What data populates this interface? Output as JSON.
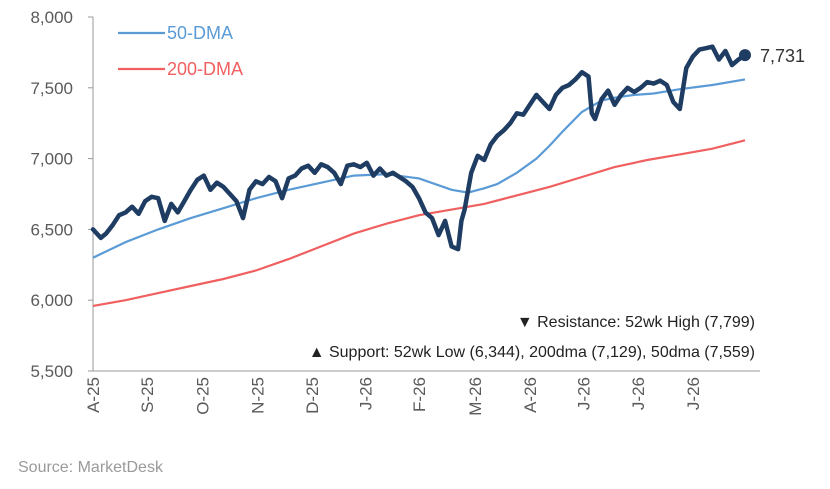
{
  "source": "Source: MarketDesk",
  "chart_data": {
    "type": "line",
    "ylim": [
      5500,
      8000
    ],
    "yticks": [
      "8,000",
      "7,500",
      "7,000",
      "6,500",
      "6,000",
      "5,500"
    ],
    "ytick_values": [
      8000,
      7500,
      7000,
      6500,
      6000,
      5500
    ],
    "x_range": [
      0,
      1
    ],
    "xticks": [
      {
        "label": "A-25",
        "pos": 0.0
      },
      {
        "label": "S-25",
        "pos": 0.083
      },
      {
        "label": "O-25",
        "pos": 0.168
      },
      {
        "label": "N-25",
        "pos": 0.252
      },
      {
        "label": "D-25",
        "pos": 0.336
      },
      {
        "label": "J-26",
        "pos": 0.418
      },
      {
        "label": "F-26",
        "pos": 0.5
      },
      {
        "label": "M-26",
        "pos": 0.586
      },
      {
        "label": "A-26",
        "pos": 0.67
      },
      {
        "label": "J-26",
        "pos": 0.752
      },
      {
        "label": "J-26",
        "pos": 0.836
      },
      {
        "label": "J-26",
        "pos": 0.92
      }
    ],
    "legend": [
      {
        "name": "50-DMA",
        "color": "#5b9bd5"
      },
      {
        "name": "200-DMA",
        "color": "#f06060"
      }
    ],
    "last_value_label": "7,731",
    "annotations": {
      "resistance": "▼ Resistance:  52wk High (7,799)",
      "support": "▲ Support:  52wk Low (6,344), 200dma (7,129), 50dma (7,559)"
    },
    "series": [
      {
        "key": "price",
        "color": "#1f3d63",
        "x": [
          0.0,
          0.012,
          0.02,
          0.03,
          0.04,
          0.05,
          0.06,
          0.07,
          0.08,
          0.09,
          0.1,
          0.11,
          0.12,
          0.13,
          0.14,
          0.15,
          0.16,
          0.17,
          0.18,
          0.19,
          0.2,
          0.21,
          0.22,
          0.23,
          0.24,
          0.25,
          0.26,
          0.27,
          0.28,
          0.29,
          0.3,
          0.31,
          0.32,
          0.33,
          0.34,
          0.35,
          0.36,
          0.37,
          0.38,
          0.39,
          0.4,
          0.41,
          0.42,
          0.43,
          0.44,
          0.45,
          0.46,
          0.47,
          0.48,
          0.49,
          0.5,
          0.51,
          0.52,
          0.53,
          0.54,
          0.55,
          0.56,
          0.565,
          0.57,
          0.58,
          0.59,
          0.6,
          0.61,
          0.62,
          0.63,
          0.64,
          0.65,
          0.66,
          0.67,
          0.68,
          0.69,
          0.7,
          0.71,
          0.72,
          0.73,
          0.74,
          0.75,
          0.76,
          0.765,
          0.77,
          0.78,
          0.79,
          0.8,
          0.81,
          0.82,
          0.83,
          0.84,
          0.85,
          0.86,
          0.87,
          0.88,
          0.89,
          0.9,
          0.91,
          0.92,
          0.93,
          0.94,
          0.95,
          0.96,
          0.97,
          0.98,
          0.99,
          1.0
        ],
        "y": [
          6500,
          6440,
          6470,
          6530,
          6600,
          6620,
          6660,
          6610,
          6700,
          6730,
          6720,
          6560,
          6680,
          6620,
          6700,
          6780,
          6850,
          6880,
          6780,
          6830,
          6800,
          6750,
          6700,
          6580,
          6780,
          6840,
          6820,
          6870,
          6840,
          6720,
          6860,
          6880,
          6930,
          6950,
          6900,
          6960,
          6940,
          6900,
          6820,
          6950,
          6960,
          6940,
          6970,
          6880,
          6930,
          6880,
          6900,
          6870,
          6840,
          6800,
          6720,
          6620,
          6580,
          6460,
          6560,
          6380,
          6360,
          6560,
          6640,
          6900,
          7020,
          6990,
          7100,
          7160,
          7200,
          7250,
          7320,
          7310,
          7380,
          7450,
          7400,
          7350,
          7450,
          7500,
          7520,
          7560,
          7610,
          7580,
          7320,
          7280,
          7420,
          7480,
          7380,
          7450,
          7500,
          7470,
          7500,
          7540,
          7530,
          7550,
          7520,
          7400,
          7350,
          7640,
          7720,
          7770,
          7780,
          7790,
          7700,
          7760,
          7660,
          7700,
          7731
        ]
      },
      {
        "key": "dma50",
        "color": "#5b9bd5",
        "x": [
          0.0,
          0.05,
          0.1,
          0.15,
          0.2,
          0.25,
          0.3,
          0.35,
          0.4,
          0.45,
          0.5,
          0.55,
          0.575,
          0.6,
          0.62,
          0.65,
          0.68,
          0.7,
          0.72,
          0.75,
          0.78,
          0.8,
          0.83,
          0.86,
          0.9,
          0.95,
          1.0
        ],
        "y": [
          6300,
          6410,
          6500,
          6580,
          6650,
          6720,
          6780,
          6830,
          6880,
          6890,
          6860,
          6780,
          6760,
          6790,
          6820,
          6900,
          7000,
          7090,
          7190,
          7330,
          7410,
          7430,
          7450,
          7460,
          7490,
          7520,
          7559
        ]
      },
      {
        "key": "dma200",
        "color": "#f06060",
        "x": [
          0.0,
          0.05,
          0.1,
          0.15,
          0.2,
          0.25,
          0.3,
          0.35,
          0.4,
          0.45,
          0.5,
          0.55,
          0.6,
          0.65,
          0.7,
          0.75,
          0.8,
          0.85,
          0.9,
          0.95,
          1.0
        ],
        "y": [
          5960,
          6000,
          6050,
          6100,
          6150,
          6210,
          6290,
          6380,
          6470,
          6540,
          6600,
          6640,
          6680,
          6740,
          6800,
          6870,
          6940,
          6990,
          7030,
          7070,
          7129
        ]
      }
    ]
  }
}
